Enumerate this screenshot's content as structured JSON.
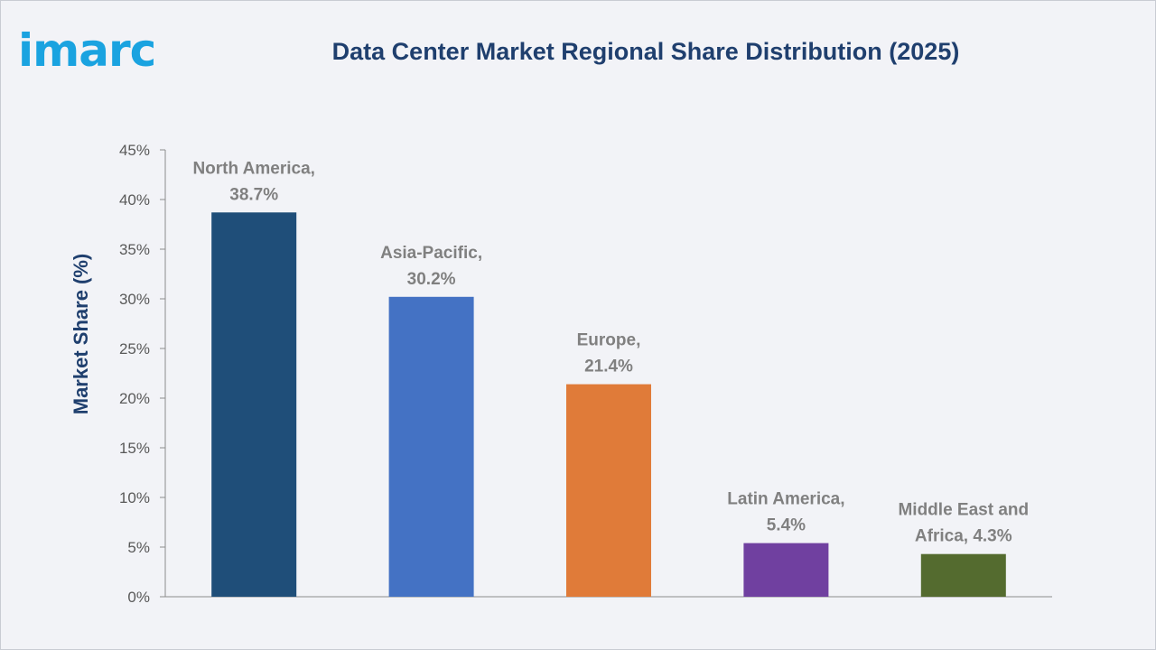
{
  "logo": {
    "text": "imarc"
  },
  "chart_data": {
    "type": "bar",
    "title": "Data Center Market Regional Share Distribution (2025)",
    "xlabel": "",
    "ylabel": "Market Share (%)",
    "ylim": [
      0,
      45
    ],
    "yticks": [
      0,
      5,
      10,
      15,
      20,
      25,
      30,
      35,
      40,
      45
    ],
    "ytick_labels": [
      "0%",
      "5%",
      "10%",
      "15%",
      "20%",
      "25%",
      "30%",
      "35%",
      "40%",
      "45%"
    ],
    "grid": false,
    "categories": [
      "North America",
      "Asia-Pacific",
      "Europe",
      "Latin America",
      "Middle East and Africa"
    ],
    "values": [
      38.7,
      30.2,
      21.4,
      5.4,
      4.3
    ],
    "colors": [
      "#1f4e79",
      "#4472c4",
      "#e07b39",
      "#7040a0",
      "#546b2f"
    ],
    "data_labels": [
      [
        "North America,",
        "38.7%"
      ],
      [
        "Asia-Pacific,",
        "30.2%"
      ],
      [
        "Europe,",
        "21.4%"
      ],
      [
        "Latin America,",
        "5.4%"
      ],
      [
        "Middle East and",
        "Africa, 4.3%"
      ]
    ]
  }
}
